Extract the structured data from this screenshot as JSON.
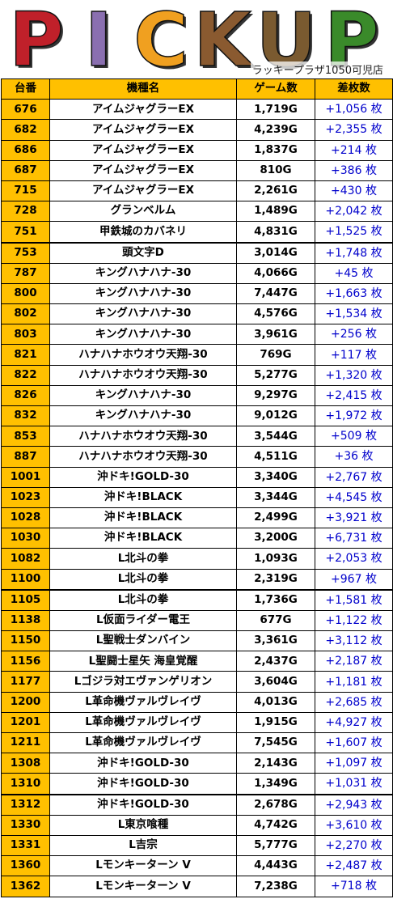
{
  "banner": {
    "title": "PICKUP",
    "store": "ラッキープラザ1050可児店"
  },
  "table": {
    "headers": [
      "台番",
      "機種名",
      "ゲーム数",
      "差枚数"
    ],
    "rows": [
      {
        "no": "676",
        "model": "アイムジャグラーEX",
        "games": "1,719G",
        "diff": "+1,056 枚"
      },
      {
        "no": "682",
        "model": "アイムジャグラーEX",
        "games": "4,239G",
        "diff": "+2,355 枚"
      },
      {
        "no": "686",
        "model": "アイムジャグラーEX",
        "games": "1,837G",
        "diff": "+214 枚"
      },
      {
        "no": "687",
        "model": "アイムジャグラーEX",
        "games": "810G",
        "diff": "+386 枚"
      },
      {
        "no": "715",
        "model": "アイムジャグラーEX",
        "games": "2,261G",
        "diff": "+430 枚"
      },
      {
        "no": "728",
        "model": "グランベルム",
        "games": "1,489G",
        "diff": "+2,042 枚"
      },
      {
        "no": "751",
        "model": "甲鉄城のカバネリ",
        "games": "4,831G",
        "diff": "+1,525 枚"
      },
      {
        "no": "753",
        "model": "頭文字D",
        "games": "3,014G",
        "diff": "+1,748 枚"
      },
      {
        "no": "787",
        "model": "キングハナハナ-30",
        "games": "4,066G",
        "diff": "+45 枚"
      },
      {
        "no": "800",
        "model": "キングハナハナ-30",
        "games": "7,447G",
        "diff": "+1,663 枚"
      },
      {
        "no": "802",
        "model": "キングハナハナ-30",
        "games": "4,576G",
        "diff": "+1,534 枚"
      },
      {
        "no": "803",
        "model": "キングハナハナ-30",
        "games": "3,961G",
        "diff": "+256 枚"
      },
      {
        "no": "821",
        "model": "ハナハナホウオウ天翔-30",
        "games": "769G",
        "diff": "+117 枚"
      },
      {
        "no": "822",
        "model": "ハナハナホウオウ天翔-30",
        "games": "5,277G",
        "diff": "+1,320 枚"
      },
      {
        "no": "826",
        "model": "キングハナハナ-30",
        "games": "9,297G",
        "diff": "+2,415 枚"
      },
      {
        "no": "832",
        "model": "キングハナハナ-30",
        "games": "9,012G",
        "diff": "+1,972 枚"
      },
      {
        "no": "853",
        "model": "ハナハナホウオウ天翔-30",
        "games": "3,544G",
        "diff": "+509 枚"
      },
      {
        "no": "887",
        "model": "ハナハナホウオウ天翔-30",
        "games": "4,511G",
        "diff": "+36 枚"
      },
      {
        "no": "1001",
        "model": "沖ドキ!GOLD-30",
        "games": "3,340G",
        "diff": "+2,767 枚"
      },
      {
        "no": "1023",
        "model": "沖ドキ!BLACK",
        "games": "3,344G",
        "diff": "+4,545 枚"
      },
      {
        "no": "1028",
        "model": "沖ドキ!BLACK",
        "games": "2,499G",
        "diff": "+3,921 枚"
      },
      {
        "no": "1030",
        "model": "沖ドキ!BLACK",
        "games": "3,200G",
        "diff": "+6,731 枚"
      },
      {
        "no": "1082",
        "model": "L北斗の拳",
        "games": "1,093G",
        "diff": "+2,053 枚"
      },
      {
        "no": "1100",
        "model": "L北斗の拳",
        "games": "2,319G",
        "diff": "+967 枚"
      },
      {
        "no": "1105",
        "model": "L北斗の拳",
        "games": "1,736G",
        "diff": "+1,581 枚"
      },
      {
        "no": "1138",
        "model": "L仮面ライダー電王",
        "games": "677G",
        "diff": "+1,122 枚"
      },
      {
        "no": "1150",
        "model": "L聖戦士ダンバイン",
        "games": "3,361G",
        "diff": "+3,112 枚"
      },
      {
        "no": "1156",
        "model": "L聖闘士星矢 海皇覚醒",
        "games": "2,437G",
        "diff": "+2,187 枚"
      },
      {
        "no": "1177",
        "model": "Lゴジラ対エヴァンゲリオン",
        "games": "3,604G",
        "diff": "+1,181 枚"
      },
      {
        "no": "1200",
        "model": "L革命機ヴァルヴレイヴ",
        "games": "4,013G",
        "diff": "+2,685 枚"
      },
      {
        "no": "1201",
        "model": "L革命機ヴァルヴレイヴ",
        "games": "1,915G",
        "diff": "+4,927 枚"
      },
      {
        "no": "1211",
        "model": "L革命機ヴァルヴレイヴ",
        "games": "7,545G",
        "diff": "+1,607 枚"
      },
      {
        "no": "1308",
        "model": "沖ドキ!GOLD-30",
        "games": "2,143G",
        "diff": "+1,097 枚"
      },
      {
        "no": "1310",
        "model": "沖ドキ!GOLD-30",
        "games": "1,349G",
        "diff": "+1,031 枚"
      },
      {
        "no": "1312",
        "model": "沖ドキ!GOLD-30",
        "games": "2,678G",
        "diff": "+2,943 枚"
      },
      {
        "no": "1330",
        "model": "L東京喰種",
        "games": "4,742G",
        "diff": "+3,610 枚"
      },
      {
        "no": "1331",
        "model": "L吉宗",
        "games": "5,777G",
        "diff": "+2,270 枚"
      },
      {
        "no": "1360",
        "model": "Lモンキーターン V",
        "games": "4,443G",
        "diff": "+2,487 枚"
      },
      {
        "no": "1362",
        "model": "Lモンキーターン V",
        "games": "7,238G",
        "diff": "+718 枚"
      }
    ]
  },
  "colors": {
    "header": "#ffc000",
    "diff_text": "#0000cc",
    "letters": [
      "#c0202a",
      "#8a6fb0",
      "#f0a020",
      "#8a5a30",
      "#7a5a30",
      "#3a8a2a"
    ]
  }
}
